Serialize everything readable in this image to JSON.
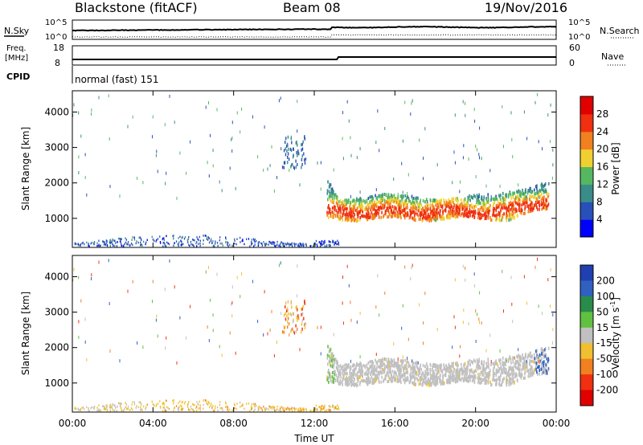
{
  "header": {
    "radar": "Blackstone (fitACF)",
    "beam": "Beam 08",
    "date": "19/Nov/2016"
  },
  "summary": {
    "nsky_label": "N.Sky",
    "nsearch_label": "N.Search",
    "freq_label_line1": "Freq.",
    "freq_label_line2": "[MHz]",
    "nave_label": "Nave",
    "cpid_label": "CPID",
    "cpid_value": "normal (fast) 151",
    "noise_ticks": [
      "10^5",
      "10^0"
    ],
    "freq_ticks": [
      "18",
      "8"
    ],
    "nave_ticks": [
      "60",
      "0"
    ]
  },
  "chart_data": [
    {
      "type": "heatmap",
      "title": "Power [dB]",
      "ylabel": "Slant Range [km]",
      "xlabel": "",
      "x_ticks": [
        "00:00",
        "04:00",
        "08:00",
        "12:00",
        "16:00",
        "20:00",
        "00:00"
      ],
      "y_ticks": [
        1000,
        2000,
        3000,
        4000
      ],
      "ylim": [
        180,
        4600
      ],
      "colorbar": {
        "label": "Power [dB]",
        "ticks": [
          4,
          8,
          12,
          16,
          20,
          24,
          28
        ],
        "colors": [
          "#0000ff",
          "#2850b8",
          "#3a8c88",
          "#55b860",
          "#f0d030",
          "#f08020",
          "#f03010",
          "#e00000"
        ]
      },
      "bands": [
        {
          "name": "ground-scatter-band",
          "x_start_h": 0.0,
          "x_end_h": 13.2,
          "range_low_km": 200,
          "range_high_km": 600
        },
        {
          "name": "ionospheric-band",
          "x_start_h": 12.6,
          "x_end_h": 23.6,
          "range_low_km": 900,
          "range_high_km": 1900
        }
      ]
    },
    {
      "type": "heatmap",
      "title": "Velocity [m s-1]",
      "ylabel": "Slant Range [km]",
      "xlabel": "Time UT",
      "x_ticks": [
        "00:00",
        "04:00",
        "08:00",
        "12:00",
        "16:00",
        "20:00",
        "00:00"
      ],
      "y_ticks": [
        1000,
        2000,
        3000,
        4000
      ],
      "ylim": [
        180,
        4600
      ],
      "colorbar": {
        "label": "Velocity [m s",
        "label_sup": "-1",
        "label_end": "]",
        "ticks": [
          200,
          100,
          50,
          15,
          -15,
          -50,
          -100,
          -200
        ],
        "colors": [
          "#2040b0",
          "#3060c0",
          "#2a8c4a",
          "#60c040",
          "#c0c0c0",
          "#f0c030",
          "#f08020",
          "#f03010",
          "#e00000"
        ]
      }
    }
  ]
}
